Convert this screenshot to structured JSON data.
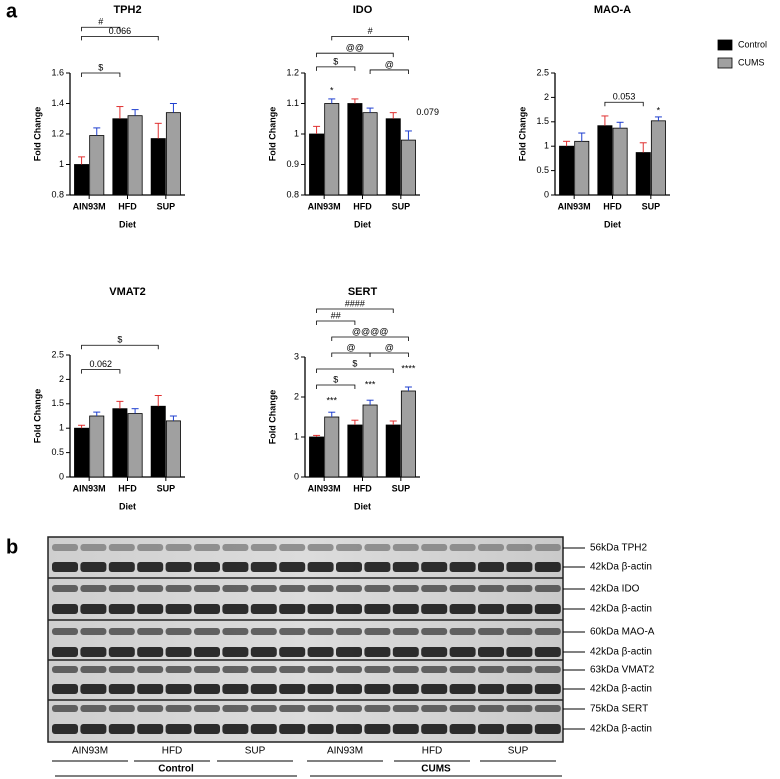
{
  "panels": [
    "a",
    "b"
  ],
  "chart_data": [
    {
      "type": "bar",
      "title": "TPH2",
      "xlabel": "Diet",
      "ylabel": "Fold Change",
      "categories": [
        "AIN93M",
        "HFD",
        "SUP"
      ],
      "series": [
        {
          "name": "Control",
          "color": "#000000",
          "values": [
            1.0,
            1.3,
            1.17
          ],
          "errors": [
            0.05,
            0.08,
            0.1
          ]
        },
        {
          "name": "CUMS",
          "color": "#a0a0a0",
          "values": [
            1.19,
            1.32,
            1.34
          ],
          "errors": [
            0.05,
            0.04,
            0.06
          ]
        }
      ],
      "ylim": [
        0.8,
        1.6
      ],
      "yticks": [
        0.8,
        1.0,
        1.2,
        1.4,
        1.6
      ],
      "annotations": [
        {
          "text": "#",
          "y": 1.9
        },
        {
          "text": "0.066",
          "y": 1.84
        },
        {
          "text": "$",
          "y": 1.6
        }
      ]
    },
    {
      "type": "bar",
      "title": "IDO",
      "xlabel": "Diet",
      "ylabel": "Fold Change",
      "categories": [
        "AIN93M",
        "HFD",
        "SUP"
      ],
      "series": [
        {
          "name": "Control",
          "color": "#000000",
          "values": [
            1.0,
            1.1,
            1.05
          ],
          "errors": [
            0.025,
            0.015,
            0.02
          ]
        },
        {
          "name": "CUMS",
          "color": "#a0a0a0",
          "values": [
            1.1,
            1.07,
            0.98
          ],
          "errors": [
            0.015,
            0.015,
            0.03
          ]
        }
      ],
      "ylim": [
        0.8,
        1.2
      ],
      "yticks": [
        0.8,
        0.9,
        1.0,
        1.1,
        1.2
      ],
      "annotations": [
        {
          "text": "*",
          "y": 1.14
        },
        {
          "text": "#",
          "y": 1.32
        },
        {
          "text": "@@",
          "y": 1.265
        },
        {
          "text": "$",
          "y": 1.22
        },
        {
          "text": "@",
          "y": 1.21
        },
        {
          "text": "0.079",
          "y": 1.07
        }
      ]
    },
    {
      "type": "bar",
      "title": "MAO-A",
      "xlabel": "Diet",
      "ylabel": "Fold Change",
      "categories": [
        "AIN93M",
        "HFD",
        "SUP"
      ],
      "series": [
        {
          "name": "Control",
          "color": "#000000",
          "values": [
            1.0,
            1.42,
            0.87
          ],
          "errors": [
            0.1,
            0.2,
            0.2
          ]
        },
        {
          "name": "CUMS",
          "color": "#a0a0a0",
          "values": [
            1.1,
            1.37,
            1.52
          ],
          "errors": [
            0.17,
            0.12,
            0.08
          ]
        }
      ],
      "ylim": [
        0,
        2.5
      ],
      "yticks": [
        0,
        0.5,
        1.0,
        1.5,
        2.0,
        2.5
      ],
      "annotations": [
        {
          "text": "0.053",
          "y": 1.9
        },
        {
          "text": "*",
          "y": 1.72
        }
      ]
    },
    {
      "type": "bar",
      "title": "VMAT2",
      "xlabel": "Diet",
      "ylabel": "Fold Change",
      "categories": [
        "AIN93M",
        "HFD",
        "SUP"
      ],
      "series": [
        {
          "name": "Control",
          "color": "#000000",
          "values": [
            1.0,
            1.4,
            1.45
          ],
          "errors": [
            0.06,
            0.15,
            0.22
          ]
        },
        {
          "name": "CUMS",
          "color": "#a0a0a0",
          "values": [
            1.25,
            1.3,
            1.15
          ],
          "errors": [
            0.08,
            0.1,
            0.1
          ]
        }
      ],
      "ylim": [
        0,
        2.5
      ],
      "yticks": [
        0,
        0.5,
        1.0,
        1.5,
        2.0,
        2.5
      ],
      "annotations": [
        {
          "text": "$",
          "y": 2.7
        },
        {
          "text": "0.062",
          "y": 2.2
        }
      ]
    },
    {
      "type": "bar",
      "title": "SERT",
      "xlabel": "Diet",
      "ylabel": "Fold Change",
      "categories": [
        "AIN93M",
        "HFD",
        "SUP"
      ],
      "series": [
        {
          "name": "Control",
          "color": "#000000",
          "values": [
            1.0,
            1.3,
            1.3
          ],
          "errors": [
            0.04,
            0.12,
            0.1
          ]
        },
        {
          "name": "CUMS",
          "color": "#a0a0a0",
          "values": [
            1.5,
            1.8,
            2.15
          ],
          "errors": [
            0.12,
            0.12,
            0.1
          ]
        }
      ],
      "ylim": [
        0,
        3
      ],
      "yticks": [
        0,
        1,
        2,
        3
      ],
      "annotations": [
        {
          "text": "####",
          "y": 4.2
        },
        {
          "text": "##",
          "y": 3.9
        },
        {
          "text": "@@@@",
          "y": 3.5
        },
        {
          "text": "@",
          "y": 3.1
        },
        {
          "text": "@",
          "y": 3.1
        },
        {
          "text": "$",
          "y": 2.7
        },
        {
          "text": "$",
          "y": 2.3
        },
        {
          "text": "***",
          "y": 1.9
        },
        {
          "text": "***",
          "y": 2.3
        },
        {
          "text": "****",
          "y": 2.7
        }
      ]
    }
  ],
  "blot": {
    "bands": [
      "56kDa TPH2",
      "42kDa β-actin",
      "42kDa IDO",
      "42kDa β-actin",
      "60kDa MAO-A",
      "42kDa β-actin",
      "63kDa VMAT2",
      "42kDa β-actin",
      "75kDa SERT",
      "42kDa β-actin"
    ],
    "lanes": [
      "AIN93M",
      "HFD",
      "SUP",
      "AIN93M",
      "HFD",
      "SUP"
    ],
    "groups": [
      "Control",
      "CUMS"
    ]
  }
}
